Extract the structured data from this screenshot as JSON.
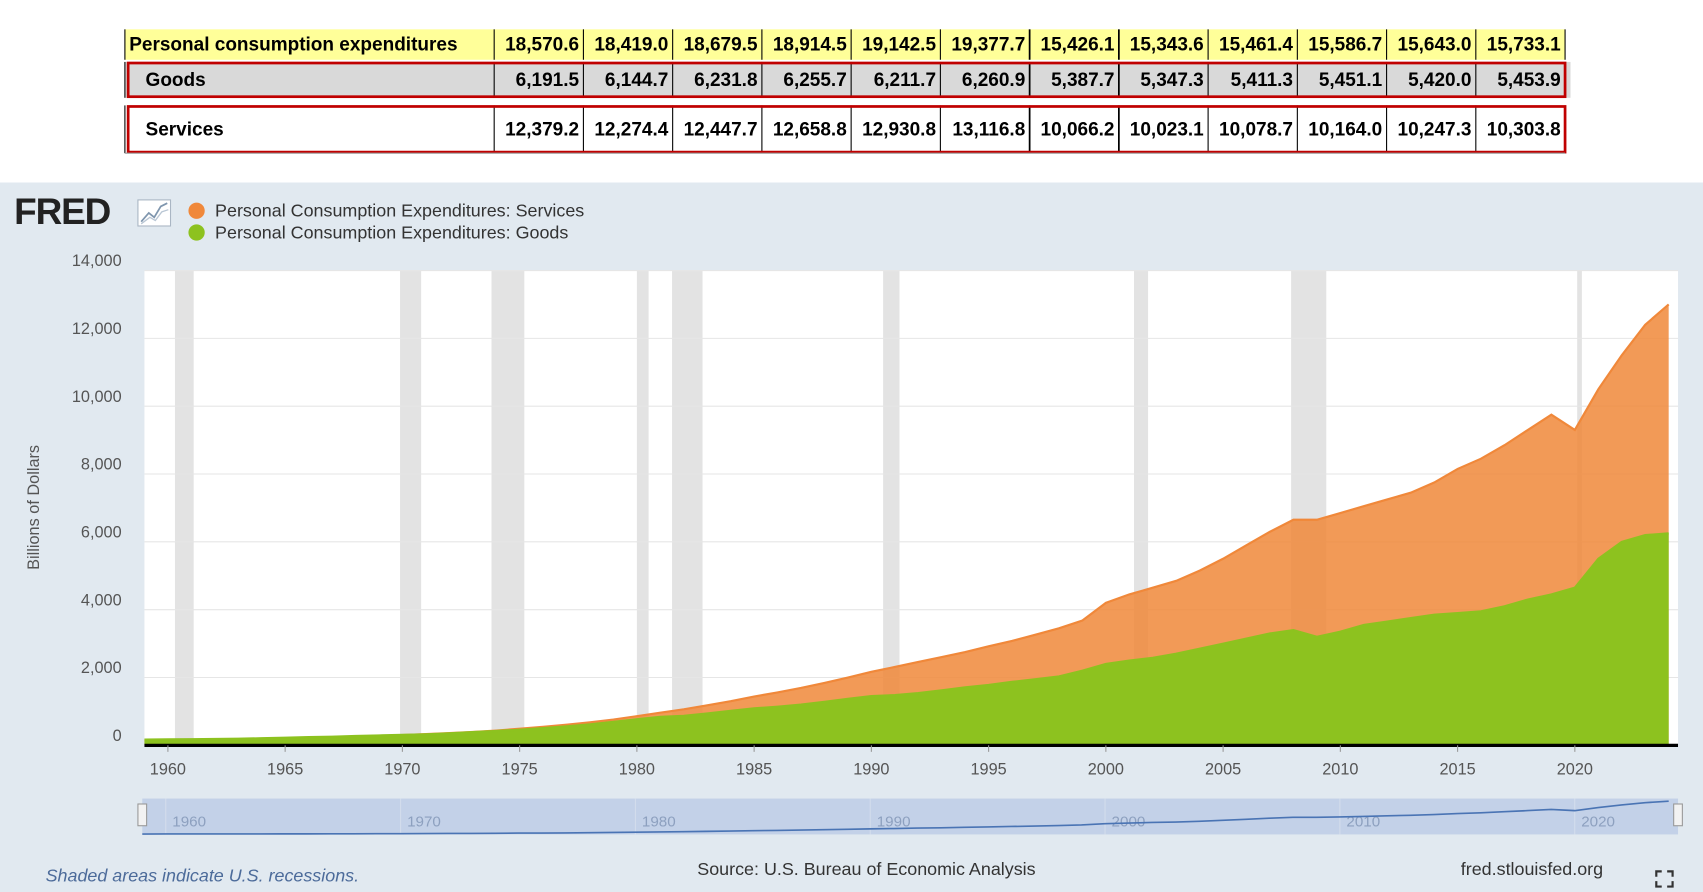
{
  "table": {
    "rows": [
      {
        "label": "Personal consumption expenditures",
        "values": [
          "18,570.6",
          "18,419.0",
          "18,679.5",
          "18,914.5",
          "19,142.5",
          "19,377.7",
          "15,426.1",
          "15,343.6",
          "15,461.4",
          "15,586.7",
          "15,643.0",
          "15,733.1"
        ]
      },
      {
        "label": "Goods",
        "values": [
          "6,191.5",
          "6,144.7",
          "6,231.8",
          "6,255.7",
          "6,211.7",
          "6,260.9",
          "5,387.7",
          "5,347.3",
          "5,411.3",
          "5,451.1",
          "5,420.0",
          "5,453.9"
        ]
      },
      {
        "label": "Services",
        "values": [
          "12,379.2",
          "12,274.4",
          "12,447.7",
          "12,658.8",
          "12,930.8",
          "13,116.8",
          "10,066.2",
          "10,023.1",
          "10,078.7",
          "10,164.0",
          "10,247.3",
          "10,303.8"
        ]
      }
    ]
  },
  "chart_data": {
    "type": "area",
    "logo": "FRED",
    "y_label": "Billions of Dollars",
    "x": [
      1959,
      1960,
      1961,
      1962,
      1963,
      1964,
      1965,
      1966,
      1967,
      1968,
      1969,
      1970,
      1971,
      1972,
      1973,
      1974,
      1975,
      1976,
      1977,
      1978,
      1979,
      1980,
      1981,
      1982,
      1983,
      1984,
      1985,
      1986,
      1987,
      1988,
      1989,
      1990,
      1991,
      1992,
      1993,
      1994,
      1995,
      1996,
      1997,
      1998,
      1999,
      2000,
      2001,
      2002,
      2003,
      2004,
      2005,
      2006,
      2007,
      2008,
      2009,
      2010,
      2011,
      2012,
      2013,
      2014,
      2015,
      2016,
      2017,
      2018,
      2019,
      2020,
      2021,
      2022,
      2023,
      2024
    ],
    "series": [
      {
        "name": "Personal Consumption Expenditures: Services",
        "color": "#f0883a",
        "values": [
          140,
          150,
          158,
          168,
          178,
          190,
          203,
          218,
          234,
          255,
          278,
          302,
          330,
          362,
          395,
          436,
          490,
          545,
          610,
          680,
          760,
          860,
          960,
          1060,
          1180,
          1300,
          1440,
          1560,
          1690,
          1840,
          2000,
          2170,
          2310,
          2460,
          2600,
          2750,
          2920,
          3080,
          3260,
          3450,
          3680,
          4200,
          4450,
          4650,
          4850,
          5150,
          5500,
          5900,
          6300,
          6650,
          6650,
          6850,
          7050,
          7250,
          7450,
          7750,
          8150,
          8450,
          8850,
          9300,
          9750,
          9300,
          10500,
          11500,
          12400,
          13000
        ]
      },
      {
        "name": "Personal Consumption Expenditures: Goods",
        "color": "#8dc21f",
        "values": [
          170,
          175,
          178,
          188,
          196,
          208,
          224,
          243,
          252,
          274,
          292,
          306,
          325,
          352,
          392,
          424,
          462,
          509,
          560,
          618,
          692,
          770,
          840,
          870,
          940,
          1020,
          1090,
          1140,
          1200,
          1280,
          1370,
          1450,
          1480,
          1540,
          1620,
          1710,
          1780,
          1870,
          1950,
          2030,
          2200,
          2400,
          2500,
          2580,
          2700,
          2850,
          3000,
          3150,
          3300,
          3400,
          3200,
          3350,
          3550,
          3650,
          3750,
          3850,
          3900,
          3950,
          4100,
          4300,
          4450,
          4650,
          5500,
          6000,
          6200,
          6250
        ]
      }
    ],
    "xlim": [
      1959,
      2024.4
    ],
    "ylim": [
      0,
      14000
    ],
    "xticks": [
      1960,
      1965,
      1970,
      1975,
      1980,
      1985,
      1990,
      1995,
      2000,
      2005,
      2010,
      2015,
      2020
    ],
    "yticks": [
      0,
      {
        "value": 2000,
        "label": "2,000"
      },
      {
        "value": 4000,
        "label": "4,000"
      },
      {
        "value": 6000,
        "label": "6,000"
      },
      {
        "value": 8000,
        "label": "8,000"
      },
      {
        "value": 10000,
        "label": "10,000"
      },
      {
        "value": 12000,
        "label": "12,000"
      },
      {
        "value": 14000,
        "label": "14,000"
      }
    ],
    "grid": true,
    "recessions": [
      [
        1960.3,
        1961.1
      ],
      [
        1969.9,
        1970.8
      ],
      [
        1973.8,
        1975.2
      ],
      [
        1980.0,
        1980.5
      ],
      [
        1981.5,
        1982.8
      ],
      [
        1990.5,
        1991.2
      ],
      [
        2001.2,
        2001.8
      ],
      [
        2007.9,
        2009.4
      ],
      [
        2020.1,
        2020.3
      ]
    ],
    "navigator_xticks": [
      1960,
      1970,
      1980,
      1990,
      2000,
      2010,
      2020
    ],
    "note": "Shaded areas indicate U.S. recessions.",
    "source": "Source: U.S. Bureau of Economic Analysis",
    "site": "fred.stlouisfed.org"
  }
}
